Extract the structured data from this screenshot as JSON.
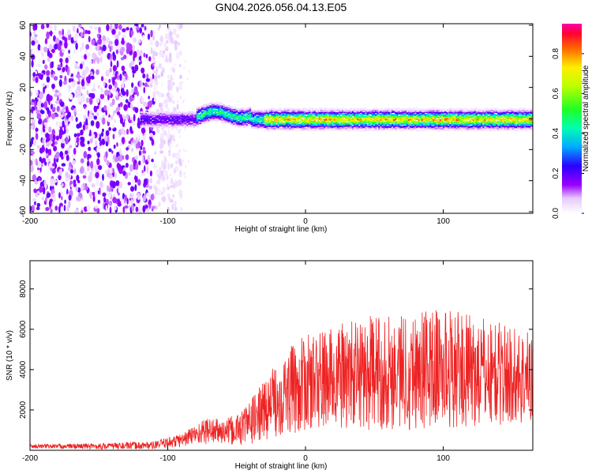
{
  "figure": {
    "title": "GN04.2026.056.04.13.E05"
  },
  "chart_data": [
    {
      "type": "heatmap",
      "name": "spectrogram",
      "xlabel": "Height of straight line (km)",
      "ylabel": "Frequency (Hz)",
      "xlim": [
        -200,
        165
      ],
      "ylim": [
        -61,
        61
      ],
      "xticks": [
        "-200",
        "-100",
        "0",
        "100"
      ],
      "xtick_values": [
        -200,
        -100,
        0,
        100
      ],
      "yticks": [
        "60",
        "40",
        "20",
        "0",
        "-20",
        "-40",
        "-60"
      ],
      "ytick_values": [
        60,
        40,
        20,
        0,
        -20,
        -40,
        -60
      ],
      "description_series": [
        {
          "name": "noise region",
          "x_range": [
            -200,
            -100
          ],
          "freq_range": [
            -60,
            60
          ],
          "amplitude": [
            0.0,
            0.2
          ]
        },
        {
          "name": "signal band",
          "x_range": [
            -120,
            165
          ],
          "center_freq": 0,
          "bandwidth_hz": 6,
          "amplitude_peak": 0.95
        }
      ],
      "colorbar": {
        "label": "Normalized spectral amplitude",
        "range": [
          0,
          0.95
        ],
        "ticks": [
          "0.0",
          "0.2",
          "0.4",
          "0.6",
          "0.8"
        ],
        "tick_values": [
          0.0,
          0.2,
          0.4,
          0.6,
          0.8
        ]
      }
    },
    {
      "type": "line",
      "name": "snr",
      "xlabel": "Height of straight line (km)",
      "ylabel": "SNR (10 * v/v)",
      "xlim": [
        -200,
        165
      ],
      "ylim": [
        0,
        9400
      ],
      "xticks": [
        "-200",
        "-100",
        "0",
        "100"
      ],
      "xtick_values": [
        -200,
        -100,
        0,
        100
      ],
      "yticks": [
        "2000",
        "4000",
        "6000",
        "8000"
      ],
      "ytick_values": [
        2000,
        4000,
        6000,
        8000
      ],
      "color": "#ee2222",
      "envelope": {
        "x": [
          -200,
          -150,
          -110,
          -90,
          -80,
          -70,
          -60,
          -50,
          -40,
          -30,
          -20,
          -10,
          0,
          20,
          40,
          60,
          80,
          100,
          120,
          140,
          160,
          165
        ],
        "mean": [
          200,
          200,
          250,
          500,
          800,
          1000,
          900,
          1000,
          1400,
          2000,
          2600,
          3000,
          3300,
          3600,
          3800,
          3900,
          4000,
          4100,
          3900,
          3800,
          3600,
          3700
        ],
        "spread": [
          100,
          150,
          200,
          350,
          500,
          700,
          600,
          800,
          1100,
          1500,
          1900,
          2200,
          2400,
          2600,
          2800,
          2900,
          3000,
          3000,
          2800,
          2600,
          2400,
          2400
        ]
      }
    }
  ]
}
